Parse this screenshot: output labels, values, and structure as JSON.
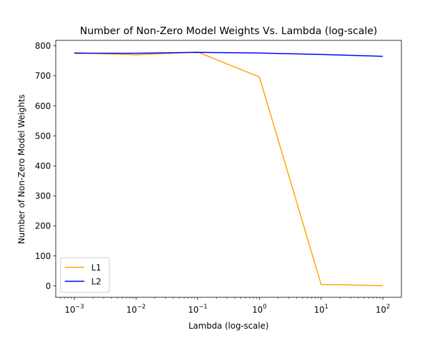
{
  "chart_data": {
    "type": "line",
    "title": "Number of Non-Zero Model Weights Vs. Lambda (log-scale)",
    "xlabel": "Lambda (log-scale)",
    "ylabel": "Number of Non-Zero Model Weights",
    "x_scale": "log",
    "x": [
      0.001,
      0.01,
      0.1,
      1,
      10,
      100
    ],
    "x_tick_labels": [
      {
        "base": "10",
        "exp": "−3"
      },
      {
        "base": "10",
        "exp": "−2"
      },
      {
        "base": "10",
        "exp": "−1"
      },
      {
        "base": "10",
        "exp": "0"
      },
      {
        "base": "10",
        "exp": "1"
      },
      {
        "base": "10",
        "exp": "2"
      }
    ],
    "xlim": [
      0.0005,
      200
    ],
    "y_ticks": [
      0,
      100,
      200,
      300,
      400,
      500,
      600,
      700,
      800
    ],
    "y_tick_labels": [
      "0",
      "100",
      "200",
      "300",
      "400",
      "500",
      "600",
      "700",
      "800"
    ],
    "ylim": [
      -38,
      818
    ],
    "grid": false,
    "legend_position": "lower-left",
    "series": [
      {
        "name": "L1",
        "color": "#ffa500",
        "values": [
          777,
          770,
          779,
          696,
          5,
          1
        ]
      },
      {
        "name": "L2",
        "color": "#0000ff",
        "values": [
          775,
          775,
          778,
          776,
          771,
          765
        ]
      }
    ]
  }
}
